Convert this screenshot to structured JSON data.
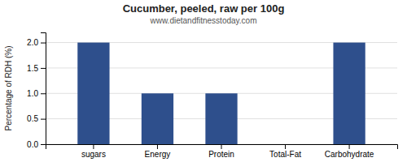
{
  "chart_data": {
    "type": "bar",
    "title": "Cucumber, peeled, raw per 100g",
    "subtitle": "www.dietandfitnesstoday.com",
    "categories": [
      "sugars",
      "Energy",
      "Protein",
      "Total-Fat",
      "Carbohydrate"
    ],
    "values": [
      2.0,
      1.0,
      1.0,
      0.0,
      2.0
    ],
    "color": "#2e4f8c",
    "ylabel": "Percentage of RDH (%)",
    "ylim": [
      0,
      2.2
    ],
    "yticks": [
      {
        "value": 0,
        "label": "0.0"
      },
      0.5,
      {
        "value": 1,
        "label": "1.0"
      },
      1.5,
      {
        "value": 2,
        "label": "2.0"
      }
    ],
    "grid": true
  }
}
